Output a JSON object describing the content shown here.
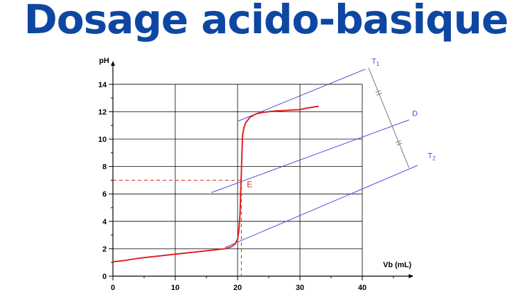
{
  "title": "Dosage acido-basique",
  "colors": {
    "title": "#0d47a1",
    "curve": "#e02020",
    "tangent": "#4b4bd8",
    "marker": "#e02020",
    "grid": "#000000",
    "construction": "#777777"
  },
  "chart_data": {
    "type": "line",
    "xlabel": "Vb (mL)",
    "ylabel": "pH",
    "xlim": [
      0,
      48
    ],
    "ylim": [
      0,
      15
    ],
    "xticks": [
      0,
      10,
      20,
      30,
      40
    ],
    "yticks": [
      0,
      2,
      4,
      6,
      8,
      10,
      12,
      14
    ],
    "grid": true,
    "curve": {
      "x": [
        0,
        2,
        4,
        6,
        8,
        10,
        12,
        14,
        16,
        18,
        19,
        19.6,
        20,
        20.2,
        20.4,
        20.5,
        20.6,
        20.7,
        20.8,
        21,
        21.3,
        22,
        23,
        24,
        26,
        28,
        30,
        31,
        33
      ],
      "y": [
        1.05,
        1.15,
        1.3,
        1.4,
        1.5,
        1.6,
        1.7,
        1.8,
        1.9,
        2.0,
        2.15,
        2.35,
        2.7,
        3.3,
        4.6,
        6.2,
        7.5,
        9.0,
        10.3,
        10.8,
        11.2,
        11.6,
        11.85,
        11.95,
        12.05,
        12.1,
        12.15,
        12.25,
        12.4
      ]
    },
    "lines": [
      {
        "name": "T1",
        "label": "T",
        "sub": "1",
        "x": [
          20,
          41
        ],
        "y": [
          11.3,
          15.2
        ]
      },
      {
        "name": "D",
        "label": "D",
        "sub": "",
        "x": [
          15.8,
          47.5
        ],
        "y": [
          6.1,
          11.4
        ]
      },
      {
        "name": "T2",
        "label": "T",
        "sub": "2",
        "x": [
          18,
          50
        ],
        "y": [
          2.1,
          8.3
        ]
      }
    ],
    "equivalence": {
      "label": "E",
      "x": 20.6,
      "y": 7.0
    },
    "construction": {
      "x": [
        41,
        47.5
      ],
      "y": [
        15.2,
        7.9
      ]
    }
  }
}
